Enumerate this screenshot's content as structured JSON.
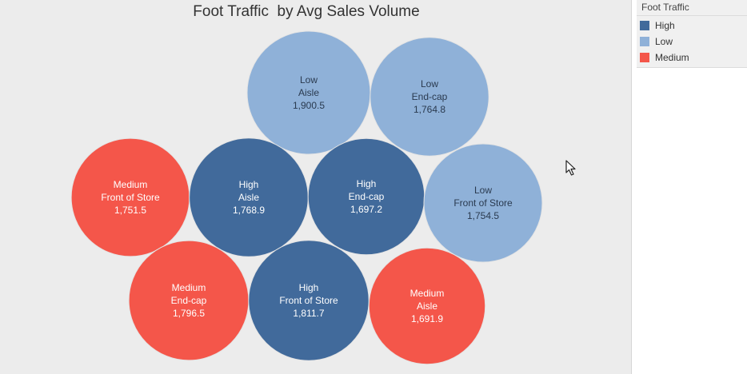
{
  "chart_data": {
    "type": "bubble",
    "title": "Foot Traffic  by Avg Sales Volume",
    "color_field": "Foot Traffic",
    "colors": {
      "High": "#416a9b",
      "Low": "#8fb1d8",
      "Medium": "#f4564a"
    },
    "bubbles": [
      {
        "traffic": "Low",
        "location": "Aisle",
        "value": 1900.5,
        "value_label": "1,900.5"
      },
      {
        "traffic": "Low",
        "location": "End-cap",
        "value": 1764.8,
        "value_label": "1,764.8"
      },
      {
        "traffic": "Medium",
        "location": "Front of Store",
        "value": 1751.5,
        "value_label": "1,751.5"
      },
      {
        "traffic": "High",
        "location": "Aisle",
        "value": 1768.9,
        "value_label": "1,768.9"
      },
      {
        "traffic": "High",
        "location": "End-cap",
        "value": 1697.2,
        "value_label": "1,697.2"
      },
      {
        "traffic": "Low",
        "location": "Front of Store",
        "value": 1754.5,
        "value_label": "1,754.5"
      },
      {
        "traffic": "Medium",
        "location": "End-cap",
        "value": 1796.5,
        "value_label": "1,796.5"
      },
      {
        "traffic": "High",
        "location": "Front of Store",
        "value": 1811.7,
        "value_label": "1,811.7"
      },
      {
        "traffic": "Medium",
        "location": "Aisle",
        "value": 1691.9,
        "value_label": "1,691.9"
      }
    ]
  },
  "legend": {
    "title": "Foot Traffic",
    "items": [
      {
        "label": "High",
        "color": "#416a9b"
      },
      {
        "label": "Low",
        "color": "#8fb1d8"
      },
      {
        "label": "Medium",
        "color": "#f4564a"
      }
    ]
  },
  "icons": {
    "cursor": "mouse-pointer-icon"
  }
}
